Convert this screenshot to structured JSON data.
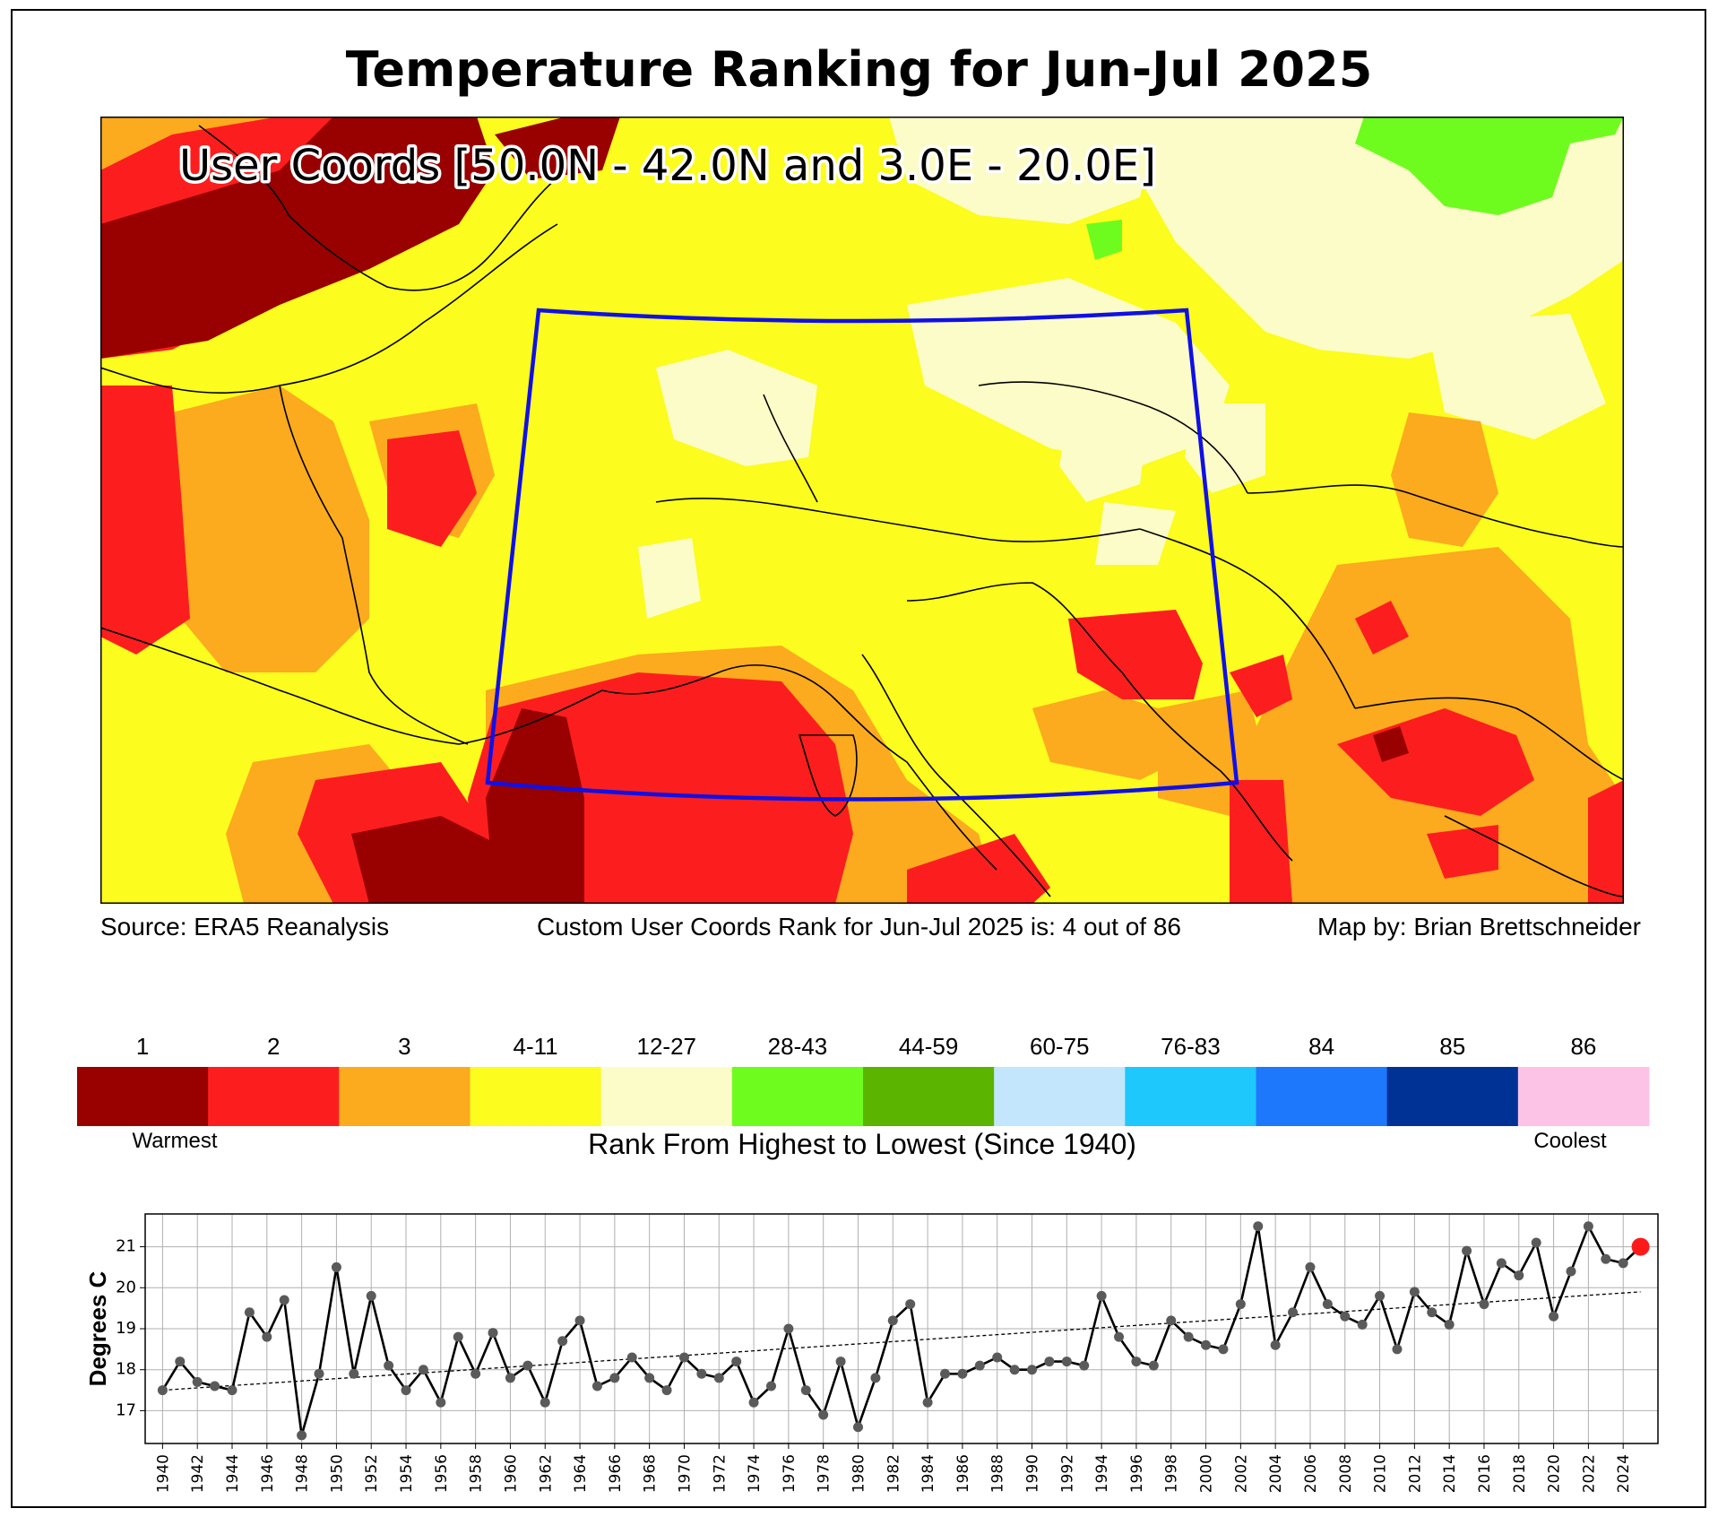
{
  "title": "Temperature Ranking for Jun-Jul 2025",
  "map": {
    "user_coords_label": "User Coords [50.0N - 42.0N and 3.0E - 20.0E]",
    "box_color": "#1010e6"
  },
  "captions": {
    "source": "Source: ERA5 Reanalysis",
    "rank_statement": "Custom User Coords Rank for Jun-Jul 2025 is: 4 out of 86",
    "credit": "Map by: Brian Brettschneider"
  },
  "legend": {
    "bins": [
      {
        "label": "1",
        "color": "#990000"
      },
      {
        "label": "2",
        "color": "#fc1e1e"
      },
      {
        "label": "3",
        "color": "#fcaa1e"
      },
      {
        "label": "4-11",
        "color": "#fcfc1e"
      },
      {
        "label": "12-27",
        "color": "#fcfcc8"
      },
      {
        "label": "28-43",
        "color": "#6efc1e"
      },
      {
        "label": "44-59",
        "color": "#5ab400"
      },
      {
        "label": "60-75",
        "color": "#c3e6fc"
      },
      {
        "label": "76-83",
        "color": "#1ec8fc"
      },
      {
        "label": "84",
        "color": "#1e78fc"
      },
      {
        "label": "85",
        "color": "#003296"
      },
      {
        "label": "86",
        "color": "#fcc3e6"
      }
    ],
    "warmest_label": "Warmest",
    "coolest_label": "Coolest",
    "axis_title": "Rank From Highest to Lowest (Since 1940)"
  },
  "chart_data": {
    "type": "line",
    "title": "",
    "xlabel": "",
    "ylabel": "Degrees C",
    "x": [
      1940,
      1941,
      1942,
      1943,
      1944,
      1945,
      1946,
      1947,
      1948,
      1949,
      1950,
      1951,
      1952,
      1953,
      1954,
      1955,
      1956,
      1957,
      1958,
      1959,
      1960,
      1961,
      1962,
      1963,
      1964,
      1965,
      1966,
      1967,
      1968,
      1969,
      1970,
      1971,
      1972,
      1973,
      1974,
      1975,
      1976,
      1977,
      1978,
      1979,
      1980,
      1981,
      1982,
      1983,
      1984,
      1985,
      1986,
      1987,
      1988,
      1989,
      1990,
      1991,
      1992,
      1993,
      1994,
      1995,
      1996,
      1997,
      1998,
      1999,
      2000,
      2001,
      2002,
      2003,
      2004,
      2005,
      2006,
      2007,
      2008,
      2009,
      2010,
      2011,
      2012,
      2013,
      2014,
      2015,
      2016,
      2017,
      2018,
      2019,
      2020,
      2021,
      2022,
      2023,
      2024,
      2025
    ],
    "y": [
      17.5,
      18.2,
      17.7,
      17.6,
      17.5,
      19.4,
      18.8,
      19.7,
      16.4,
      17.9,
      20.5,
      17.9,
      19.8,
      18.1,
      17.5,
      18.0,
      17.2,
      18.8,
      17.9,
      18.9,
      17.8,
      18.1,
      17.2,
      18.7,
      19.2,
      17.6,
      17.8,
      18.3,
      17.8,
      17.5,
      18.3,
      17.9,
      17.8,
      18.2,
      17.2,
      17.6,
      19.0,
      17.5,
      16.9,
      18.2,
      16.6,
      17.8,
      19.2,
      19.6,
      17.2,
      17.9,
      17.9,
      18.1,
      18.3,
      18.0,
      18.0,
      18.2,
      18.2,
      18.1,
      19.8,
      18.8,
      18.2,
      18.1,
      19.2,
      18.8,
      18.6,
      18.5,
      19.6,
      21.5,
      18.6,
      19.4,
      20.5,
      19.6,
      19.3,
      19.1,
      19.8,
      18.5,
      19.9,
      19.4,
      19.1,
      20.9,
      19.6,
      20.6,
      20.3,
      21.1,
      19.3,
      20.4,
      21.5,
      20.7,
      20.6,
      21.0
    ],
    "highlight": {
      "year": 2025,
      "value": 21.0,
      "color": "#ff1a1a"
    },
    "trend": {
      "start": 17.5,
      "end": 19.9
    },
    "xlim": [
      1939,
      2026
    ],
    "ylim": [
      16.2,
      21.8
    ],
    "yticks": [
      17,
      18,
      19,
      20,
      21
    ],
    "xticks": [
      1940,
      1942,
      1944,
      1946,
      1948,
      1950,
      1952,
      1954,
      1956,
      1958,
      1960,
      1962,
      1964,
      1966,
      1968,
      1970,
      1972,
      1974,
      1976,
      1978,
      1980,
      1982,
      1984,
      1986,
      1988,
      1990,
      1992,
      1994,
      1996,
      1998,
      2000,
      2002,
      2004,
      2006,
      2008,
      2010,
      2012,
      2014,
      2016,
      2018,
      2020,
      2022,
      2024
    ],
    "grid": true
  }
}
